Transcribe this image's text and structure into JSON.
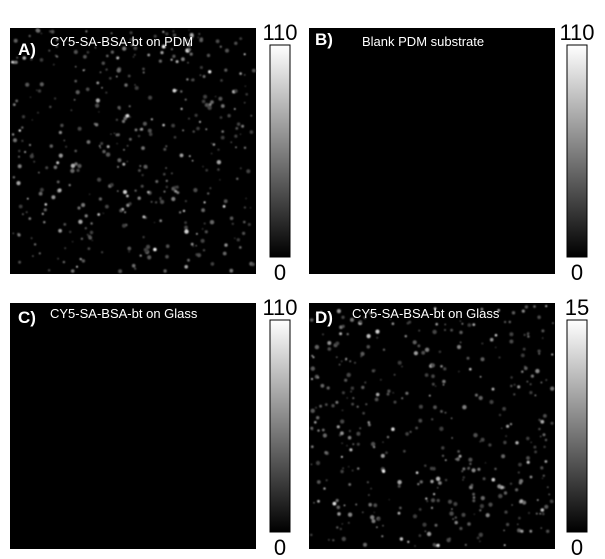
{
  "panels": [
    {
      "letter": "A)",
      "caption": "CY5-SA-BSA-bt on PDM",
      "scale_max": 110,
      "scale_min": 0
    },
    {
      "letter": "B)",
      "caption": "Blank PDM substrate",
      "scale_max": 110,
      "scale_min": 0
    },
    {
      "letter": "C)",
      "caption": "CY5-SA-BSA-bt on Glass",
      "scale_max": 110,
      "scale_min": 0
    },
    {
      "letter": "D)",
      "caption": "CY5-SA-BSA-bt on Glass",
      "scale_max": 15,
      "scale_min": 0
    }
  ]
}
